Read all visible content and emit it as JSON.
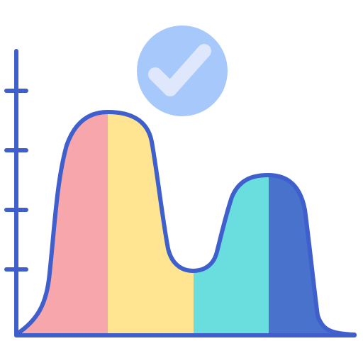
{
  "icon": {
    "name": "bimodal-distribution-chart-check-icon",
    "colors": {
      "outline": "#3f5fcc",
      "segment_pink": "#f7a7ab",
      "segment_yellow": "#ffe592",
      "segment_cyan": "#6addde",
      "segment_blue": "#4872cc",
      "badge_fill": "#a6c8fb",
      "check_fill": "#dee7fb"
    },
    "axis_ticks": 4
  }
}
